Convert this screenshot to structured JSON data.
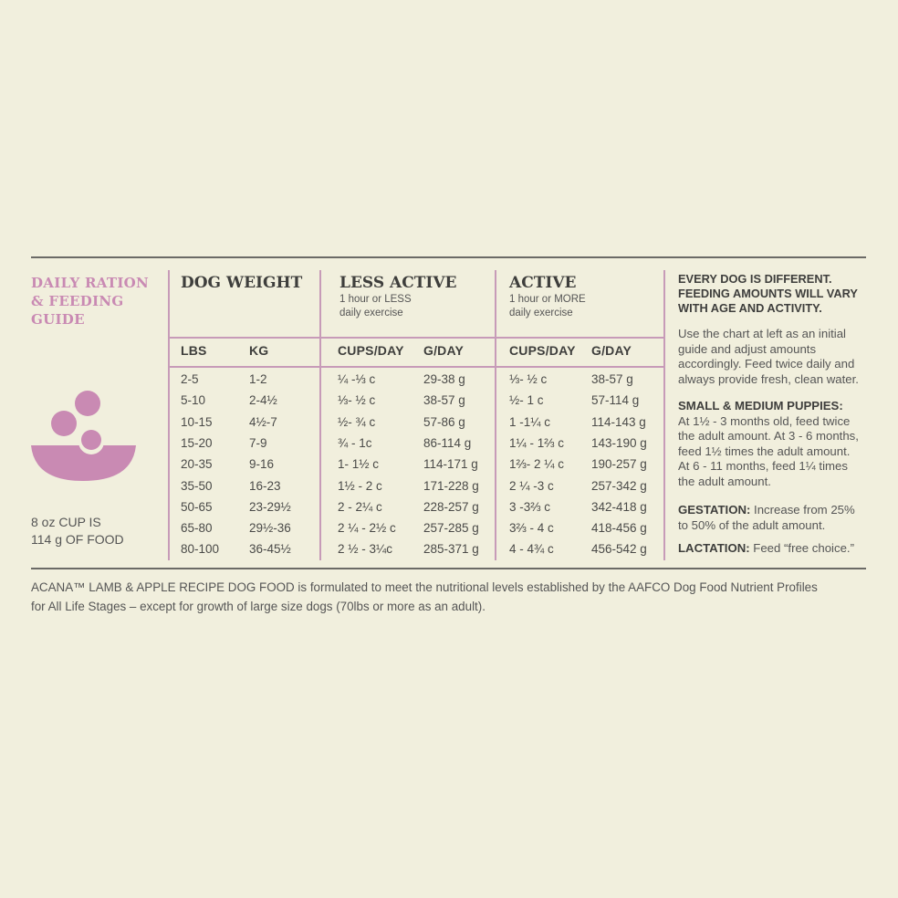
{
  "guide_title": [
    "DAILY RATION",
    "& FEEDING",
    "GUIDE"
  ],
  "cup_note": [
    "8 oz CUP IS",
    "114 g OF FOOD"
  ],
  "icon": "food-bowl-icon",
  "accent_color": "#c98ab3",
  "sections": {
    "dog_weight": {
      "title": "DOG WEIGHT",
      "cols": [
        "LBS",
        "KG"
      ]
    },
    "less_active": {
      "title": "LESS ACTIVE",
      "sub": [
        "1 hour or LESS",
        "daily exercise"
      ],
      "cols": [
        "CUPS/DAY",
        "G/DAY"
      ]
    },
    "active": {
      "title": "ACTIVE",
      "sub": [
        "1 hour or MORE",
        "daily exercise"
      ],
      "cols": [
        "CUPS/DAY",
        "G/DAY"
      ]
    }
  },
  "rows": [
    [
      "2-5",
      "1-2",
      "¼ -⅓ c",
      "29-38 g",
      "⅓- ½ c",
      "38-57 g"
    ],
    [
      "5-10",
      "2-4½",
      "⅓- ½ c",
      "38-57 g",
      "½- 1 c",
      "57-114 g"
    ],
    [
      "10-15",
      "4½-7",
      "½- ¾ c",
      "57-86 g",
      "1 -1¼ c",
      "114-143 g"
    ],
    [
      "15-20",
      "7-9",
      "¾ - 1c",
      "86-114 g",
      "1¼ - 1⅔ c",
      "143-190 g"
    ],
    [
      "20-35",
      "9-16",
      "1- 1½ c",
      "114-171 g",
      "1⅔- 2 ¼ c",
      "190-257 g"
    ],
    [
      "35-50",
      "16-23",
      "1½ - 2 c",
      "171-228 g",
      "2 ¼ -3 c",
      "257-342 g"
    ],
    [
      "50-65",
      "23-29½",
      "2 - 2¼ c",
      "228-257 g",
      "3 -3⅔ c",
      "342-418 g"
    ],
    [
      "65-80",
      "29½-36",
      "2 ¼ - 2½ c",
      "257-285 g",
      "3⅔ - 4 c",
      "418-456 g"
    ],
    [
      "80-100",
      "36-45½",
      "2 ½ - 3¼c",
      "285-371 g",
      "4 - 4¾ c",
      "456-542 g"
    ]
  ],
  "right": {
    "heading": [
      "EVERY DOG IS DIFFERENT.",
      "FEEDING AMOUNTS WILL VARY",
      "WITH AGE AND ACTIVITY."
    ],
    "intro": [
      "Use the chart at left as an initial",
      "guide and adjust amounts",
      "accordingly. Feed twice daily and",
      "always provide fresh, clean water."
    ],
    "puppies_label": "SMALL & MEDIUM PUPPIES:",
    "puppies_text": [
      "At 1½ - 3 months old, feed twice",
      "the adult amount. At 3 - 6 months,",
      "feed 1½ times the adult amount.",
      "At 6 - 11 months, feed 1¼ times",
      "the adult amount."
    ],
    "gestation_label": "GESTATION:",
    "gestation_text": [
      " Increase from 25%",
      "to 50% of the adult amount."
    ],
    "lactation_label": "LACTATION:",
    "lactation_text": " Feed “free choice.”"
  },
  "footer": [
    "ACANA™ LAMB & APPLE RECIPE DOG FOOD is formulated to meet the nutritional levels established by the AAFCO Dog Food Nutrient Profiles",
    "for All Life Stages – except for growth of large size dogs (70lbs or more as an adult)."
  ]
}
